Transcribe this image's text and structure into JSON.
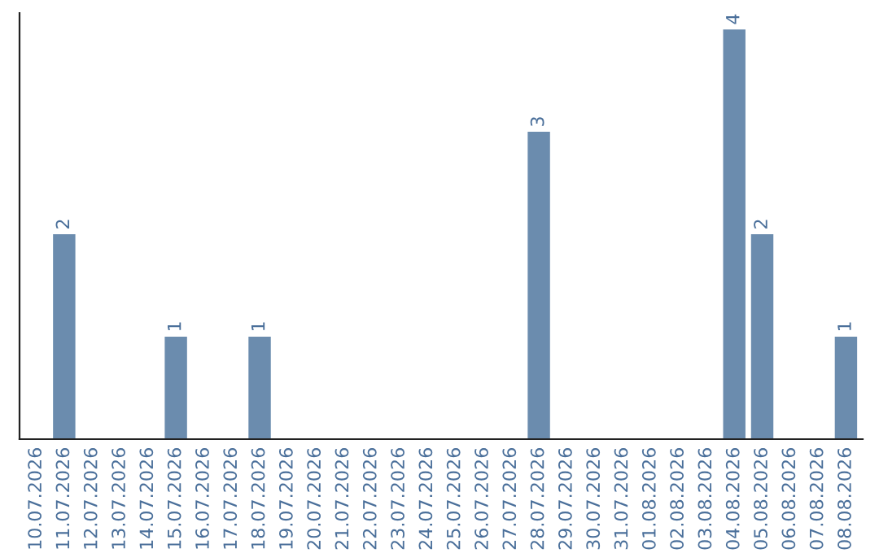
{
  "chart_data": {
    "type": "bar",
    "categories": [
      "10.07.2026",
      "11.07.2026",
      "12.07.2026",
      "13.07.2026",
      "14.07.2026",
      "15.07.2026",
      "16.07.2026",
      "17.07.2026",
      "18.07.2026",
      "19.07.2026",
      "20.07.2026",
      "21.07.2026",
      "22.07.2026",
      "23.07.2026",
      "24.07.2026",
      "25.07.2026",
      "26.07.2026",
      "27.07.2026",
      "28.07.2026",
      "29.07.2026",
      "30.07.2026",
      "31.07.2026",
      "01.08.2026",
      "02.08.2026",
      "03.08.2026",
      "04.08.2026",
      "05.08.2026",
      "06.08.2026",
      "07.08.2026",
      "08.08.2026"
    ],
    "values": [
      0,
      2,
      0,
      0,
      0,
      1,
      0,
      0,
      1,
      0,
      0,
      0,
      0,
      0,
      0,
      0,
      0,
      0,
      3,
      0,
      0,
      0,
      0,
      0,
      0,
      4,
      2,
      0,
      0,
      1
    ],
    "value_labels": [
      null,
      "2",
      null,
      null,
      null,
      "1",
      null,
      null,
      "1",
      null,
      null,
      null,
      null,
      null,
      null,
      null,
      null,
      null,
      "3",
      null,
      null,
      null,
      null,
      null,
      null,
      "4",
      "2",
      null,
      null,
      "1"
    ],
    "color": "#6b8cae",
    "ylim": [
      0,
      4.16
    ],
    "tick_labels": "x",
    "grid": false
  }
}
